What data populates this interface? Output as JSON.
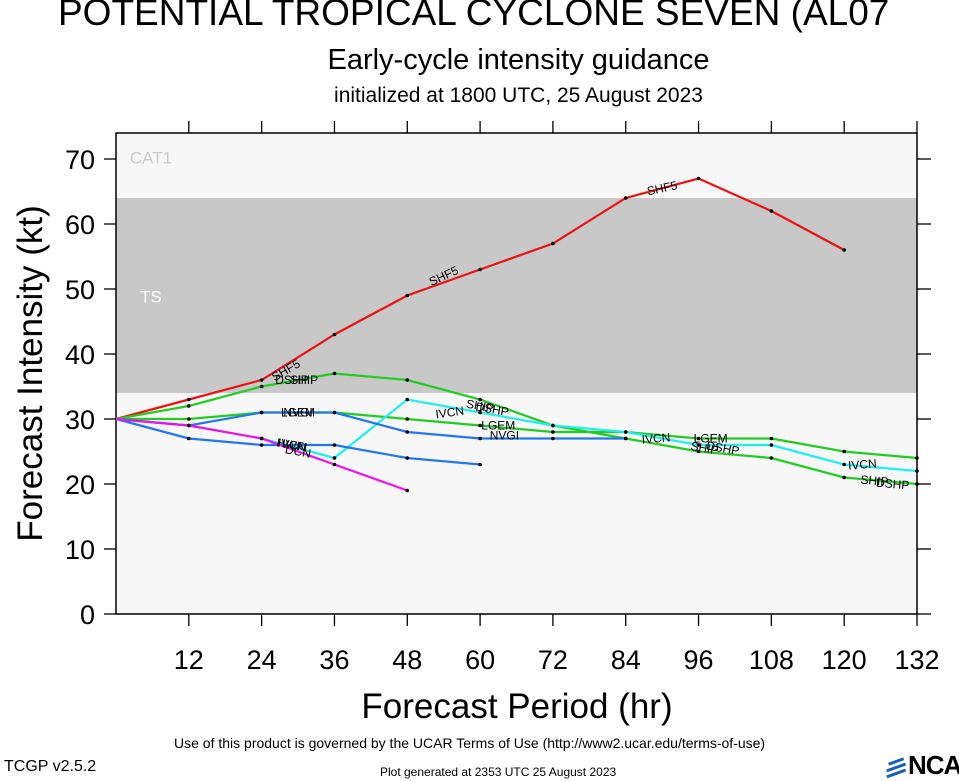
{
  "header": {
    "title": "POTENTIAL TROPICAL CYCLONE SEVEN (AL07",
    "subtitle": "Early-cycle intensity guidance",
    "initialized": "initialized at 1800 UTC, 25 August 2023"
  },
  "footer": {
    "terms": "Use of this product is governed by the UCAR Terms of Use (http://www2.ucar.edu/terms-of-use)",
    "version": "TCGP v2.5.2",
    "generated": "Plot generated at 2353 UTC   25 August 2023",
    "logo_text": "NCAR"
  },
  "chart_data": {
    "type": "line",
    "xlabel": "Forecast Period (hr)",
    "ylabel": "Forecast Intensity (kt)",
    "xlim": [
      0,
      132
    ],
    "ylim": [
      0,
      74
    ],
    "x_ticks": [
      12,
      24,
      36,
      48,
      60,
      72,
      84,
      96,
      108,
      120,
      132
    ],
    "y_ticks": [
      0,
      10,
      20,
      30,
      40,
      50,
      60,
      70
    ],
    "bands": [
      {
        "label": "TS",
        "from": 34,
        "to": 64,
        "color": "#c8c8c8",
        "label_color": "#ffffff"
      },
      {
        "label": "CAT1",
        "from": 64,
        "to": 74,
        "color": "#f7f7f7",
        "label_color": "#cccccc"
      }
    ],
    "plot_background": "#f7f7f7",
    "series": [
      {
        "name": "SHF5",
        "color": "#ee1111",
        "x": [
          0,
          12,
          24,
          36,
          48,
          60,
          72,
          84,
          96,
          108,
          120
        ],
        "y": [
          30,
          33,
          36,
          43,
          49,
          53,
          57,
          64,
          67,
          62,
          56
        ]
      },
      {
        "name": "DSHP",
        "color": "#22cc22",
        "x": [
          0,
          12,
          24,
          36,
          48,
          60,
          72,
          84,
          96,
          108,
          120,
          132
        ],
        "y": [
          30,
          32,
          35,
          37,
          36,
          33,
          29,
          27,
          25,
          24,
          21,
          20
        ]
      },
      {
        "name": "LGEM",
        "color": "#22cc22",
        "x": [
          0,
          12,
          24,
          36,
          48,
          60,
          72,
          84,
          96,
          108,
          120,
          132
        ],
        "y": [
          30,
          30,
          31,
          31,
          30,
          29,
          28,
          28,
          27,
          27,
          25,
          24
        ]
      },
      {
        "name": "IVCN",
        "color": "#22eeee",
        "x": [
          0,
          12,
          24,
          36,
          48,
          60,
          72,
          84,
          96,
          108,
          120,
          132
        ],
        "y": [
          30,
          29,
          27,
          24,
          33,
          31,
          29,
          28,
          26,
          26,
          23,
          22
        ]
      },
      {
        "name": "NVGI",
        "color": "#2277ee",
        "x": [
          0,
          12,
          24,
          36,
          48,
          60,
          72,
          84
        ],
        "y": [
          30,
          29,
          31,
          31,
          28,
          27,
          27,
          27
        ]
      },
      {
        "name": "HWFI",
        "color": "#2277ee",
        "x": [
          0,
          12,
          24,
          36,
          48,
          60
        ],
        "y": [
          30,
          27,
          26,
          26,
          24,
          23
        ]
      },
      {
        "name": "DCN",
        "color": "#ee11ee",
        "x": [
          0,
          12,
          24,
          36,
          48
        ],
        "y": [
          30,
          29,
          27,
          23,
          19
        ]
      }
    ],
    "labels": [
      {
        "text": "SHF5",
        "x": 28,
        "y": 37.5,
        "rot": -30
      },
      {
        "text": "SHF5",
        "x": 54,
        "y": 52,
        "rot": -25
      },
      {
        "text": "SHF5",
        "x": 90,
        "y": 65.5,
        "rot": -12
      },
      {
        "text": "DSHP",
        "x": 29,
        "y": 36,
        "rot": 0
      },
      {
        "text": "SHIP",
        "x": 31,
        "y": 36,
        "rot": 0
      },
      {
        "text": "SHIP",
        "x": 60,
        "y": 32,
        "rot": 10
      },
      {
        "text": "DSHP",
        "x": 62,
        "y": 31.5,
        "rot": 10
      },
      {
        "text": "SHIP",
        "x": 97,
        "y": 25.5,
        "rot": 10
      },
      {
        "text": "DSHP",
        "x": 100,
        "y": 25.5,
        "rot": 10
      },
      {
        "text": "SHIP",
        "x": 125,
        "y": 20.5,
        "rot": 5
      },
      {
        "text": "DSHP",
        "x": 128,
        "y": 20,
        "rot": 5
      },
      {
        "text": "LGEM",
        "x": 30,
        "y": 31,
        "rot": 0
      },
      {
        "text": "NVGI",
        "x": 30,
        "y": 31,
        "rot": 0
      },
      {
        "text": "LGEM",
        "x": 63,
        "y": 29,
        "rot": 0
      },
      {
        "text": "LGEM",
        "x": 98,
        "y": 27,
        "rot": 0
      },
      {
        "text": "IVCN",
        "x": 55,
        "y": 31,
        "rot": -8
      },
      {
        "text": "IVCN",
        "x": 89,
        "y": 27,
        "rot": -5
      },
      {
        "text": "IVCN",
        "x": 123,
        "y": 23,
        "rot": -5
      },
      {
        "text": "NVGI",
        "x": 64,
        "y": 27.5,
        "rot": 0
      },
      {
        "text": "HWFI",
        "x": 29,
        "y": 26,
        "rot": 10
      },
      {
        "text": "IVCN",
        "x": 29,
        "y": 26,
        "rot": 10
      },
      {
        "text": "DCN",
        "x": 30,
        "y": 25,
        "rot": 10
      }
    ]
  }
}
